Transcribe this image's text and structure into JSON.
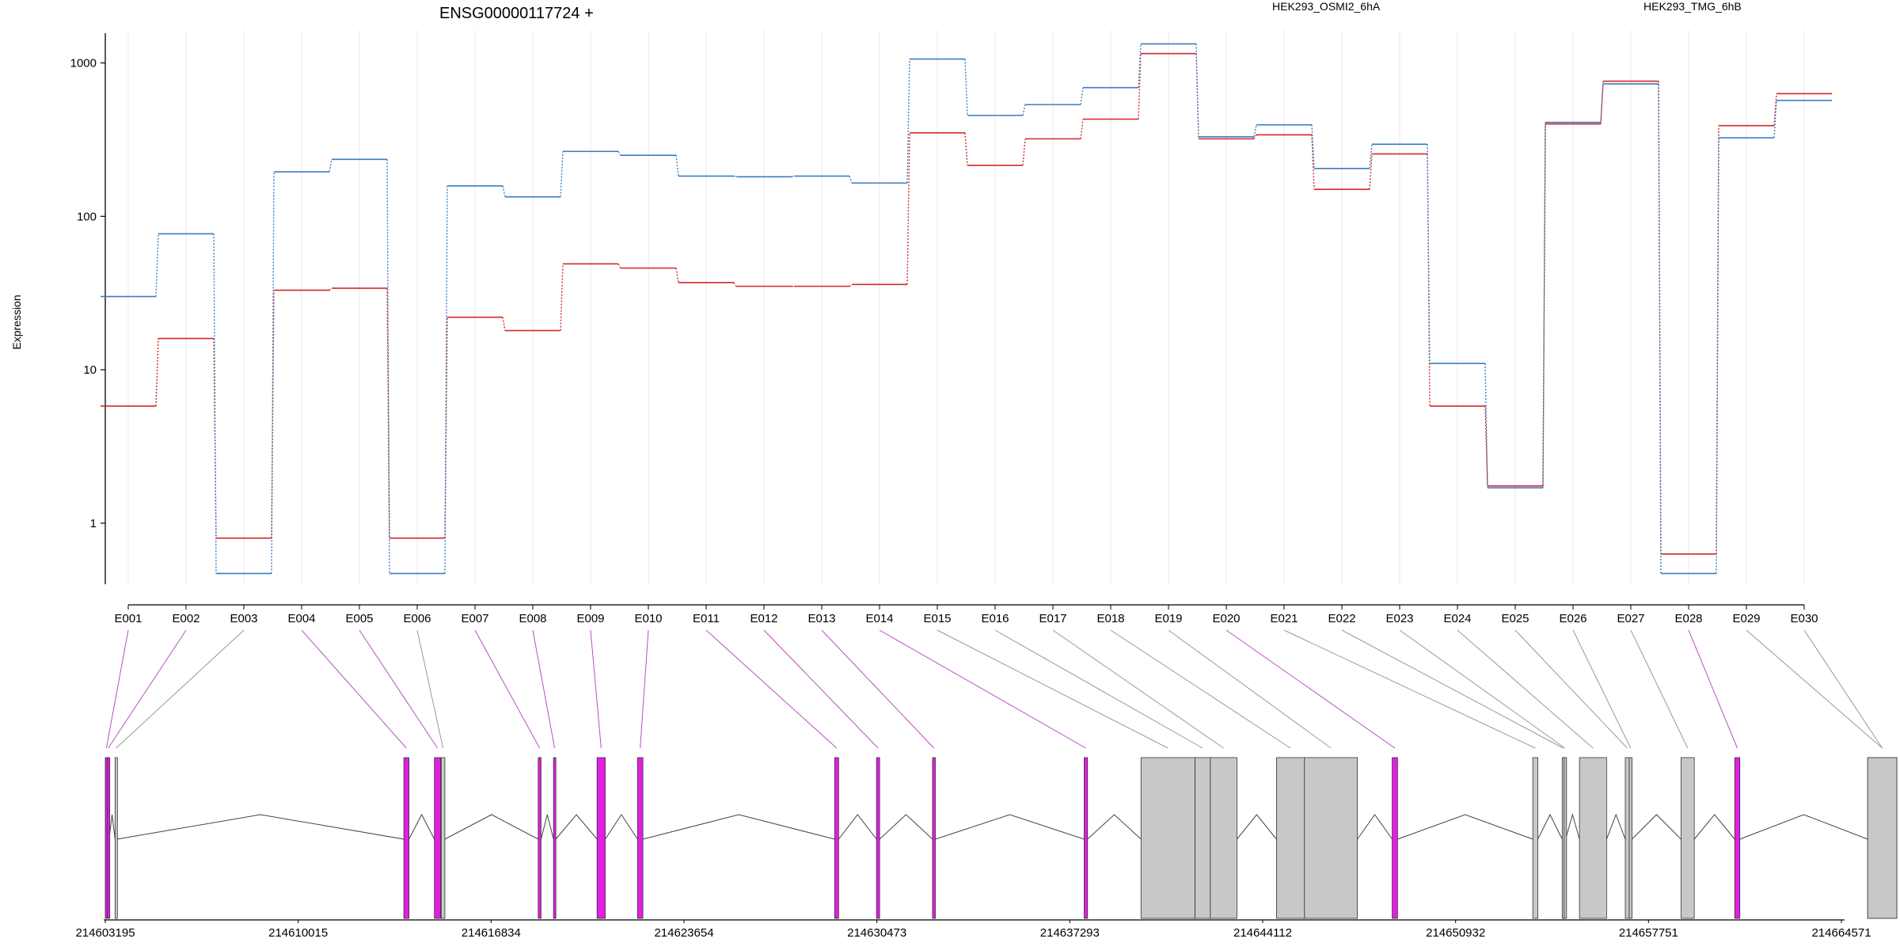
{
  "chart_data": {
    "type": "line",
    "title": "ENSG00000117724 +",
    "ylabel": "Expression",
    "y_scale": "log",
    "ylim": [
      0.4,
      1800
    ],
    "y_ticks": [
      1,
      10,
      100,
      1000
    ],
    "y_tick_labels": [
      "1",
      "10",
      "100",
      "1000"
    ],
    "categories": [
      "E001",
      "E002",
      "E003",
      "E004",
      "E005",
      "E006",
      "E007",
      "E008",
      "E009",
      "E010",
      "E011",
      "E012",
      "E013",
      "E014",
      "E015",
      "E016",
      "E017",
      "E018",
      "E019",
      "E020",
      "E021",
      "E022",
      "E023",
      "E024",
      "E025",
      "E026",
      "E027",
      "E028",
      "E029",
      "E030"
    ],
    "series": [
      {
        "name": "HEK293_OSMI2_6hA",
        "color": "#d62728",
        "values": [
          5.8,
          16,
          0.8,
          33,
          34,
          0.8,
          22,
          18,
          49,
          46,
          37,
          35,
          35,
          36,
          350,
          215,
          320,
          430,
          1150,
          320,
          340,
          150,
          255,
          5.8,
          1.75,
          400,
          760,
          0.63,
          390,
          630
        ]
      },
      {
        "name": "HEK293_TMG_6hB",
        "color": "#3a7ec1",
        "values": [
          30,
          77,
          0.47,
          195,
          235,
          0.47,
          158,
          134,
          265,
          250,
          183,
          181,
          183,
          165,
          1060,
          455,
          535,
          690,
          1330,
          330,
          395,
          205,
          295,
          11,
          1.7,
          410,
          730,
          0.47,
          325,
          570
        ]
      }
    ],
    "legend_position": "top",
    "grid": "vertical-at-categories",
    "gene_model": {
      "coord_ticks": [
        "214603195",
        "214610015",
        "214616834",
        "214623654",
        "214630473",
        "214637293",
        "214644112",
        "214650932",
        "214657751",
        "214664571"
      ],
      "coord_tick_values": [
        214603195,
        214610015,
        214616834,
        214623654,
        214630473,
        214637293,
        214644112,
        214650932,
        214657751,
        214664571
      ],
      "highlight_color": "#e11fe1",
      "other_color": "#c8c8c8",
      "exons": [
        {
          "id": "E001",
          "start": 214603195,
          "end": 214603270,
          "highlight": true
        },
        {
          "id": "E002",
          "start": 214603270,
          "end": 214603330,
          "highlight": true
        },
        {
          "id": "E003",
          "start": 214603540,
          "end": 214603610,
          "highlight": false
        },
        {
          "id": "E004",
          "start": 214613750,
          "end": 214613930,
          "highlight": true
        },
        {
          "id": "E005",
          "start": 214614830,
          "end": 214615050,
          "highlight": true
        },
        {
          "id": "E006",
          "start": 214615070,
          "end": 214615200,
          "highlight": false
        },
        {
          "id": "E007",
          "start": 214618500,
          "end": 214618600,
          "highlight": true
        },
        {
          "id": "E008",
          "start": 214619040,
          "end": 214619120,
          "highlight": true
        },
        {
          "id": "E009",
          "start": 214620580,
          "end": 214620870,
          "highlight": true
        },
        {
          "id": "E010",
          "start": 214622010,
          "end": 214622200,
          "highlight": true
        },
        {
          "id": "E011",
          "start": 214628980,
          "end": 214629120,
          "highlight": true
        },
        {
          "id": "E012",
          "start": 214630460,
          "end": 214630570,
          "highlight": true
        },
        {
          "id": "E013",
          "start": 214632440,
          "end": 214632540,
          "highlight": true
        },
        {
          "id": "E014",
          "start": 214637800,
          "end": 214637920,
          "highlight": true
        },
        {
          "id": "E015",
          "start": 214639810,
          "end": 214641720,
          "highlight": false
        },
        {
          "id": "E016",
          "start": 214641720,
          "end": 214642260,
          "highlight": false
        },
        {
          "id": "E017",
          "start": 214642260,
          "end": 214643200,
          "highlight": false
        },
        {
          "id": "E018",
          "start": 214644600,
          "end": 214645590,
          "highlight": false
        },
        {
          "id": "E019",
          "start": 214645590,
          "end": 214647460,
          "highlight": false
        },
        {
          "id": "E020",
          "start": 214648690,
          "end": 214648880,
          "highlight": true
        },
        {
          "id": "E021",
          "start": 214653660,
          "end": 214653840,
          "highlight": false
        },
        {
          "id": "E022",
          "start": 214654700,
          "end": 214654770,
          "highlight": false
        },
        {
          "id": "E023",
          "start": 214654770,
          "end": 214654820,
          "highlight": false
        },
        {
          "id": "E024",
          "start": 214655310,
          "end": 214656270,
          "highlight": false
        },
        {
          "id": "E025",
          "start": 214656930,
          "end": 214657070,
          "highlight": false
        },
        {
          "id": "E026",
          "start": 214657070,
          "end": 214657170,
          "highlight": false
        },
        {
          "id": "E027",
          "start": 214658900,
          "end": 214659370,
          "highlight": false
        },
        {
          "id": "E028",
          "start": 214660800,
          "end": 214660980,
          "highlight": true
        },
        {
          "id": "E029",
          "start": 214665500,
          "end": 214666530,
          "highlight": false
        },
        {
          "id": "E030",
          "start": 214665500,
          "end": 214666530,
          "highlight": false
        }
      ]
    }
  }
}
